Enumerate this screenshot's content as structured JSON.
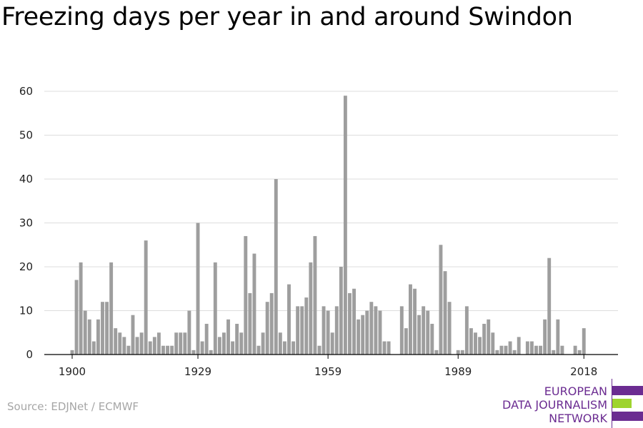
{
  "title": "Freezing days per year in and around Swindon",
  "source": "Source: EDJNet / ECMWF",
  "logo": {
    "lines": [
      "EUROPEAN",
      "DATA JOURNALISM",
      "NETWORK"
    ],
    "colors": {
      "purple": "#6b2c91",
      "green": "#9ed42e"
    }
  },
  "chart_data": {
    "type": "bar",
    "title": "Freezing days per year in and around Swindon",
    "xlabel": "",
    "ylabel": "",
    "x_ticks": [
      1900,
      1929,
      1959,
      1989,
      2018
    ],
    "y_ticks": [
      0,
      10,
      20,
      30,
      40,
      50,
      60
    ],
    "ylim": [
      0,
      60
    ],
    "xlim": [
      1900,
      2021
    ],
    "grid": true,
    "bar_color": "#9e9e9e",
    "x": [
      1900,
      1901,
      1902,
      1903,
      1904,
      1905,
      1906,
      1907,
      1908,
      1909,
      1910,
      1911,
      1912,
      1913,
      1914,
      1915,
      1916,
      1917,
      1918,
      1919,
      1920,
      1921,
      1922,
      1923,
      1924,
      1925,
      1926,
      1927,
      1928,
      1929,
      1930,
      1931,
      1932,
      1933,
      1934,
      1935,
      1936,
      1937,
      1938,
      1939,
      1940,
      1941,
      1942,
      1943,
      1944,
      1945,
      1946,
      1947,
      1948,
      1949,
      1950,
      1951,
      1952,
      1953,
      1954,
      1955,
      1956,
      1957,
      1958,
      1959,
      1960,
      1961,
      1962,
      1963,
      1964,
      1965,
      1966,
      1967,
      1968,
      1969,
      1970,
      1971,
      1972,
      1973,
      1974,
      1975,
      1976,
      1977,
      1978,
      1979,
      1980,
      1981,
      1982,
      1983,
      1984,
      1985,
      1986,
      1987,
      1988,
      1989,
      1990,
      1991,
      1992,
      1993,
      1994,
      1995,
      1996,
      1997,
      1998,
      1999,
      2000,
      2001,
      2002,
      2003,
      2004,
      2005,
      2006,
      2007,
      2008,
      2009,
      2010,
      2011,
      2012,
      2013,
      2014,
      2015,
      2016,
      2017,
      2018,
      2019,
      2020,
      2021
    ],
    "values": [
      1,
      17,
      21,
      10,
      8,
      3,
      8,
      12,
      12,
      21,
      6,
      5,
      4,
      2,
      9,
      4,
      5,
      26,
      3,
      4,
      5,
      2,
      2,
      2,
      5,
      5,
      5,
      10,
      1,
      30,
      3,
      7,
      1,
      21,
      4,
      5,
      8,
      3,
      7,
      5,
      27,
      14,
      23,
      2,
      5,
      12,
      14,
      40,
      5,
      3,
      16,
      3,
      11,
      11,
      13,
      21,
      27,
      2,
      11,
      10,
      5,
      11,
      20,
      59,
      14,
      15,
      8,
      9,
      10,
      12,
      11,
      10,
      3,
      3,
      0,
      0,
      11,
      6,
      16,
      15,
      9,
      11,
      10,
      7,
      1,
      25,
      19,
      12,
      0,
      1,
      1,
      11,
      6,
      5,
      4,
      7,
      8,
      5,
      1,
      2,
      2,
      3,
      1,
      4,
      0,
      3,
      3,
      2,
      2,
      8,
      22,
      1,
      8,
      2,
      0,
      0,
      2,
      1,
      6,
      0,
      0,
      0
    ]
  }
}
